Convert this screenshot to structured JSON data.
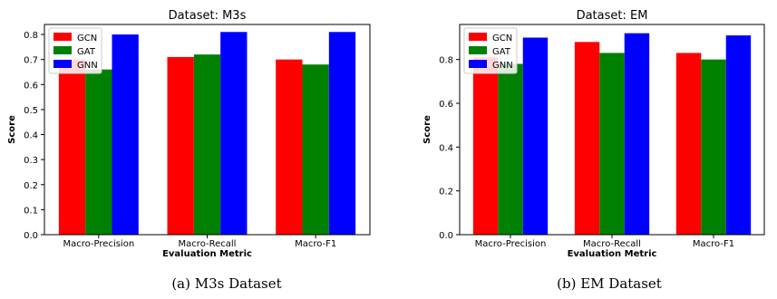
{
  "chart_data": [
    {
      "type": "bar",
      "title": "Dataset: M3s",
      "xlabel": "Evaluation Metric",
      "ylabel": "Score",
      "categories": [
        "Macro-Precision",
        "Macro-Recall",
        "Macro-F1"
      ],
      "series": [
        {
          "name": "GCN",
          "values": [
            0.7,
            0.71,
            0.7
          ]
        },
        {
          "name": "GAT",
          "values": [
            0.66,
            0.72,
            0.68
          ]
        },
        {
          "name": "GNN",
          "values": [
            0.8,
            0.81,
            0.81
          ]
        }
      ],
      "ylim": [
        0,
        0.84
      ],
      "yticks": [
        0.0,
        0.1,
        0.2,
        0.3,
        0.4,
        0.5,
        0.6,
        0.7,
        0.8
      ],
      "ytick_labels": [
        "0.0",
        "0.1",
        "0.2",
        "0.3",
        "0.4",
        "0.5",
        "0.6",
        "0.7",
        "0.8"
      ],
      "grid": false,
      "legend_position": "top-left"
    },
    {
      "type": "bar",
      "title": "Dataset: EM",
      "xlabel": "Evaluation Metric",
      "ylabel": "Score",
      "categories": [
        "Macro-Precision",
        "Macro-Recall",
        "Macro-F1"
      ],
      "series": [
        {
          "name": "GCN",
          "values": [
            0.81,
            0.88,
            0.83
          ]
        },
        {
          "name": "GAT",
          "values": [
            0.78,
            0.83,
            0.8
          ]
        },
        {
          "name": "GNN",
          "values": [
            0.9,
            0.92,
            0.91
          ]
        }
      ],
      "ylim": [
        0,
        0.96
      ],
      "yticks": [
        0.0,
        0.2,
        0.4,
        0.6,
        0.8
      ],
      "ytick_labels": [
        "0.0",
        "0.2",
        "0.4",
        "0.6",
        "0.8"
      ],
      "grid": false,
      "legend_position": "top-left"
    }
  ],
  "colors": {
    "GCN": "#ff0000",
    "GAT": "#008000",
    "GNN": "#0000ff"
  },
  "captions": [
    "(a) M3s Dataset",
    "(b) EM Dataset"
  ]
}
